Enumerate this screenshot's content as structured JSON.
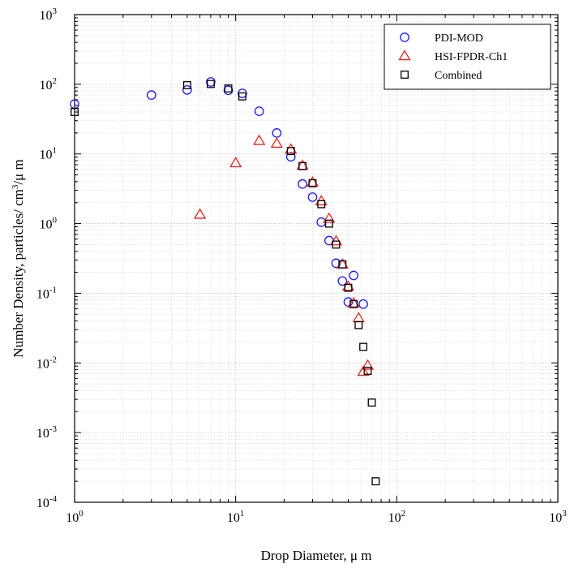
{
  "chart_data": {
    "type": "scatter",
    "title": "",
    "xlabel": "Drop Diameter, μ m",
    "ylabel_main": "Number Density, particles/ cm",
    "ylabel_exp": "3",
    "ylabel_tail": "/μ m",
    "x_scale": "log",
    "y_scale": "log",
    "xlim": [
      1,
      1000
    ],
    "ylim": [
      0.0001,
      1000
    ],
    "x_ticks": [
      {
        "base": "10",
        "exp": "0"
      },
      {
        "base": "10",
        "exp": "1"
      },
      {
        "base": "10",
        "exp": "2"
      },
      {
        "base": "10",
        "exp": "3"
      }
    ],
    "y_ticks": [
      {
        "base": "10",
        "exp": "-4"
      },
      {
        "base": "10",
        "exp": "-3"
      },
      {
        "base": "10",
        "exp": "-2"
      },
      {
        "base": "10",
        "exp": "-1"
      },
      {
        "base": "10",
        "exp": "0"
      },
      {
        "base": "10",
        "exp": "1"
      },
      {
        "base": "10",
        "exp": "2"
      },
      {
        "base": "10",
        "exp": "3"
      }
    ],
    "grid": true,
    "legend_position": "top-right",
    "series": [
      {
        "name": "PDI-MOD",
        "marker": "circle",
        "color": "#1a1aff",
        "x": [
          1,
          3,
          5,
          7,
          9,
          11,
          14,
          18,
          22,
          26,
          30,
          34,
          38,
          42,
          46,
          50,
          54,
          62
        ],
        "y": [
          52,
          70,
          83,
          108,
          82,
          74,
          41,
          20,
          9.1,
          3.7,
          2.4,
          1.05,
          0.57,
          0.27,
          0.15,
          0.075,
          0.18,
          0.07
        ]
      },
      {
        "name": "HSI-FPDR-Ch1",
        "marker": "triangle",
        "color": "#e8221c",
        "x": [
          6,
          10,
          14,
          18,
          22,
          26,
          30,
          34,
          38,
          42,
          46,
          50,
          54,
          58,
          62,
          66
        ],
        "y": [
          1.35,
          7.4,
          15.5,
          14.1,
          11.6,
          6.8,
          3.9,
          2.1,
          1.18,
          0.56,
          0.26,
          0.125,
          0.072,
          0.044,
          0.0075,
          0.0092
        ]
      },
      {
        "name": "Combined",
        "marker": "square",
        "color": "#000000",
        "x": [
          1,
          5,
          7,
          9,
          11,
          22,
          26,
          30,
          34,
          38,
          42,
          46,
          50,
          54,
          58,
          62,
          66,
          70,
          74
        ],
        "y": [
          40,
          97,
          101,
          87,
          67,
          11,
          6.7,
          3.8,
          1.9,
          1.0,
          0.5,
          0.26,
          0.12,
          0.07,
          0.035,
          0.017,
          0.0077,
          0.0027,
          0.0002
        ]
      }
    ]
  }
}
